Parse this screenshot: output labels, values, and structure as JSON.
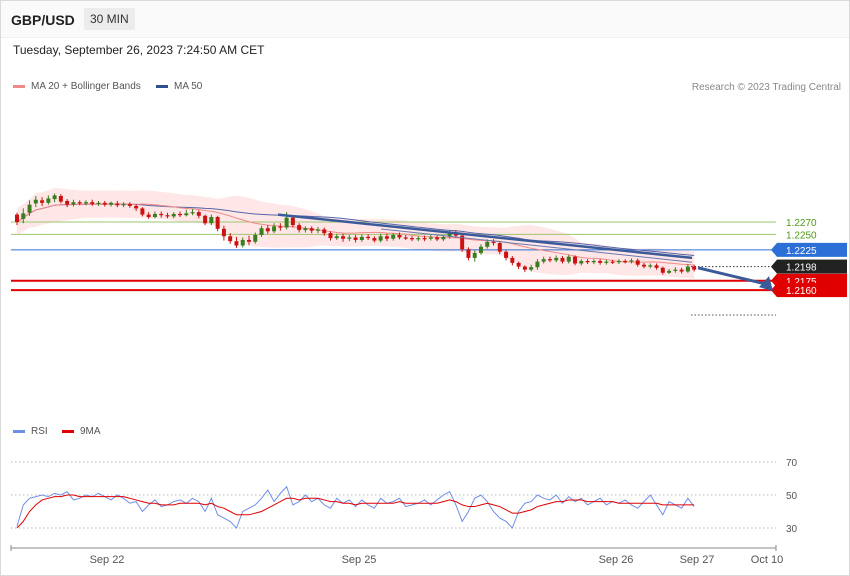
{
  "header": {
    "pair": "GBP/USD",
    "timeframe": "30 MIN"
  },
  "timestamp": "Tuesday, September 26, 2023 7:24:50 AM CET",
  "legend": {
    "ma20_bb": "MA 20 + Bollinger Bands",
    "ma50": "MA 50",
    "rsi": "RSI",
    "ma9": "9MA",
    "credit": "Research © 2023 Trading Central"
  },
  "colors": {
    "bull": "#3a7d1e",
    "bear": "#cc1111",
    "band": "#ffe3e3",
    "ma20": "#f08a8a",
    "ma50": "#5466a8",
    "trend": "#3b5a9a",
    "level_green": "#9ec46f",
    "level_blue": "#2c6fd6",
    "level_red": "#e00000",
    "rsi": "#6f8ee8",
    "rsi_ma": "#e00000"
  },
  "chart_data": [
    {
      "type": "candlestick",
      "title": "GBP/USD 30 MIN",
      "ylim": [
        1.2145,
        1.2325
      ],
      "x_ticks": [
        "Sep 22",
        "Sep 25",
        "Sep 26",
        "Sep 27",
        "Oct 10"
      ],
      "levels": [
        {
          "value": 1.227,
          "label": "1.2270",
          "role": "resistance"
        },
        {
          "value": 1.225,
          "label": "1.2250",
          "role": "resistance"
        },
        {
          "value": 1.2225,
          "label": "1.2225",
          "role": "pivot"
        },
        {
          "value": 1.2198,
          "label": "1.2198",
          "role": "last price"
        },
        {
          "value": 1.2175,
          "label": "1.2175",
          "role": "support"
        },
        {
          "value": 1.216,
          "label": "1.2160",
          "role": "support"
        }
      ],
      "candles": [
        [
          1.2282,
          1.227,
          1.2285,
          1.2265
        ],
        [
          1.2275,
          1.2284,
          1.2292,
          1.2268
        ],
        [
          1.2285,
          1.2298,
          1.2305,
          1.228
        ],
        [
          1.23,
          1.2306,
          1.2312,
          1.2294
        ],
        [
          1.2305,
          1.2301,
          1.231,
          1.2296
        ],
        [
          1.2301,
          1.2308,
          1.2313,
          1.2298
        ],
        [
          1.2307,
          1.2313,
          1.2316,
          1.2302
        ],
        [
          1.2312,
          1.2303,
          1.2315,
          1.23
        ],
        [
          1.2304,
          1.2298,
          1.2307,
          1.2294
        ],
        [
          1.2298,
          1.2302,
          1.2306,
          1.2295
        ],
        [
          1.2302,
          1.23,
          1.2305,
          1.2297
        ],
        [
          1.23,
          1.2302,
          1.2305,
          1.2297
        ],
        [
          1.2302,
          1.2299,
          1.2306,
          1.2296
        ],
        [
          1.2299,
          1.2301,
          1.2304,
          1.2296
        ],
        [
          1.2301,
          1.2298,
          1.2304,
          1.2295
        ],
        [
          1.2298,
          1.2301,
          1.2303,
          1.2295
        ],
        [
          1.23,
          1.2297,
          1.2304,
          1.2294
        ],
        [
          1.2297,
          1.2299,
          1.2302,
          1.2294
        ],
        [
          1.2299,
          1.2296,
          1.2302,
          1.2293
        ],
        [
          1.2296,
          1.2292,
          1.2299,
          1.2288
        ],
        [
          1.2292,
          1.2282,
          1.2294,
          1.2279
        ],
        [
          1.2282,
          1.2278,
          1.2286,
          1.2275
        ],
        [
          1.2278,
          1.2283,
          1.2287,
          1.2276
        ],
        [
          1.2283,
          1.2281,
          1.2287,
          1.2277
        ],
        [
          1.2281,
          1.2279,
          1.2285,
          1.2276
        ],
        [
          1.2279,
          1.2283,
          1.2286,
          1.2276
        ],
        [
          1.2283,
          1.2281,
          1.2287,
          1.2278
        ],
        [
          1.2281,
          1.2284,
          1.229,
          1.2279
        ],
        [
          1.2284,
          1.2286,
          1.2291,
          1.2281
        ],
        [
          1.2286,
          1.228,
          1.2289,
          1.2276
        ],
        [
          1.228,
          1.2268,
          1.2282,
          1.2265
        ],
        [
          1.2268,
          1.2278,
          1.2282,
          1.2265
        ],
        [
          1.2278,
          1.2259,
          1.228,
          1.2255
        ],
        [
          1.2259,
          1.2247,
          1.2264,
          1.224
        ],
        [
          1.2247,
          1.2239,
          1.2252,
          1.2235
        ],
        [
          1.2239,
          1.2232,
          1.2246,
          1.2228
        ],
        [
          1.2232,
          1.2241,
          1.2245,
          1.2229
        ],
        [
          1.2241,
          1.2238,
          1.2248,
          1.2233
        ],
        [
          1.2238,
          1.2249,
          1.2253,
          1.2235
        ],
        [
          1.2249,
          1.226,
          1.2264,
          1.2246
        ],
        [
          1.226,
          1.2255,
          1.2265,
          1.2251
        ],
        [
          1.2255,
          1.2263,
          1.2268,
          1.2252
        ],
        [
          1.2263,
          1.2261,
          1.2268,
          1.2256
        ],
        [
          1.2261,
          1.2277,
          1.2286,
          1.2258
        ],
        [
          1.2277,
          1.2265,
          1.2281,
          1.2261
        ],
        [
          1.2265,
          1.2257,
          1.2268,
          1.2253
        ],
        [
          1.2257,
          1.226,
          1.2263,
          1.2253
        ],
        [
          1.226,
          1.2256,
          1.2263,
          1.2252
        ],
        [
          1.2256,
          1.2258,
          1.2262,
          1.2252
        ],
        [
          1.2258,
          1.2252,
          1.2261,
          1.2248
        ],
        [
          1.2252,
          1.2244,
          1.2255,
          1.224
        ],
        [
          1.2244,
          1.2247,
          1.2251,
          1.2241
        ],
        [
          1.2247,
          1.2243,
          1.2251,
          1.2238
        ],
        [
          1.2243,
          1.2245,
          1.2249,
          1.2239
        ],
        [
          1.2245,
          1.2241,
          1.2249,
          1.2237
        ],
        [
          1.2241,
          1.2246,
          1.225,
          1.2238
        ],
        [
          1.2246,
          1.2244,
          1.225,
          1.2241
        ],
        [
          1.2244,
          1.224,
          1.2247,
          1.2237
        ],
        [
          1.224,
          1.2247,
          1.2251,
          1.2237
        ],
        [
          1.2247,
          1.2243,
          1.2251,
          1.2239
        ],
        [
          1.2243,
          1.2249,
          1.2252,
          1.224
        ],
        [
          1.2249,
          1.2245,
          1.2253,
          1.2242
        ],
        [
          1.2245,
          1.2244,
          1.2249,
          1.2241
        ],
        [
          1.2244,
          1.2242,
          1.2247,
          1.2239
        ],
        [
          1.2242,
          1.2244,
          1.2247,
          1.2239
        ],
        [
          1.2244,
          1.2243,
          1.2248,
          1.2239
        ],
        [
          1.2243,
          1.2245,
          1.2249,
          1.224
        ],
        [
          1.2245,
          1.2242,
          1.2248,
          1.2239
        ],
        [
          1.2242,
          1.2246,
          1.2249,
          1.2239
        ],
        [
          1.2246,
          1.2252,
          1.2256,
          1.2243
        ],
        [
          1.2252,
          1.2248,
          1.2257,
          1.2244
        ],
        [
          1.2248,
          1.2226,
          1.225,
          1.2222
        ],
        [
          1.2226,
          1.2212,
          1.2229,
          1.2208
        ],
        [
          1.2212,
          1.222,
          1.2224,
          1.2206
        ],
        [
          1.222,
          1.223,
          1.2234,
          1.2217
        ],
        [
          1.223,
          1.2238,
          1.2242,
          1.2227
        ],
        [
          1.2238,
          1.2236,
          1.2242,
          1.2232
        ],
        [
          1.2236,
          1.2222,
          1.2238,
          1.2218
        ],
        [
          1.2222,
          1.2212,
          1.2224,
          1.2208
        ],
        [
          1.2212,
          1.2204,
          1.2215,
          1.22
        ],
        [
          1.2204,
          1.2198,
          1.2206,
          1.2194
        ],
        [
          1.2198,
          1.2193,
          1.22,
          1.2189
        ],
        [
          1.2193,
          1.2197,
          1.2201,
          1.219
        ],
        [
          1.2197,
          1.2206,
          1.221,
          1.2193
        ],
        [
          1.2206,
          1.221,
          1.2214,
          1.2203
        ],
        [
          1.221,
          1.2208,
          1.2214,
          1.2205
        ],
        [
          1.2208,
          1.2212,
          1.2216,
          1.2205
        ],
        [
          1.2212,
          1.2206,
          1.2215,
          1.2203
        ],
        [
          1.2206,
          1.2214,
          1.2217,
          1.2203
        ],
        [
          1.2214,
          1.2203,
          1.2216,
          1.22
        ],
        [
          1.2203,
          1.2207,
          1.221,
          1.22
        ],
        [
          1.2207,
          1.2205,
          1.221,
          1.2202
        ],
        [
          1.2205,
          1.2207,
          1.221,
          1.2202
        ],
        [
          1.2207,
          1.2204,
          1.221,
          1.2201
        ],
        [
          1.2204,
          1.2206,
          1.2209,
          1.2201
        ],
        [
          1.2206,
          1.2205,
          1.2209,
          1.2202
        ],
        [
          1.2205,
          1.2207,
          1.221,
          1.2202
        ],
        [
          1.2207,
          1.2206,
          1.221,
          1.2203
        ],
        [
          1.2206,
          1.2208,
          1.2211,
          1.2203
        ],
        [
          1.2208,
          1.2201,
          1.2211,
          1.2198
        ],
        [
          1.2201,
          1.2198,
          1.2204,
          1.2195
        ],
        [
          1.2198,
          1.22,
          1.2203,
          1.2195
        ],
        [
          1.22,
          1.2196,
          1.2203,
          1.2193
        ],
        [
          1.2196,
          1.2188,
          1.2198,
          1.2185
        ],
        [
          1.2188,
          1.2191,
          1.2194,
          1.2186
        ],
        [
          1.2191,
          1.2193,
          1.2197,
          1.2188
        ],
        [
          1.2193,
          1.219,
          1.2196,
          1.2187
        ],
        [
          1.219,
          1.2198,
          1.2202,
          1.2188
        ],
        [
          1.2198,
          1.2193,
          1.2201,
          1.219
        ]
      ],
      "ma20_bollinger": {
        "label": "MA 20 + Bollinger Bands"
      },
      "ma50": {
        "label": "MA 50"
      },
      "trendlines": [
        {
          "from": [
            "Sep 25",
            1.2282
          ],
          "to": [
            "Sep 27",
            1.2212
          ]
        }
      ],
      "forecast_arrow": {
        "from": 1.2196,
        "to": 1.216
      }
    },
    {
      "type": "line",
      "title": "RSI",
      "ylim": [
        20,
        80
      ],
      "y_ticks": [
        30,
        50,
        70
      ],
      "series": [
        {
          "name": "RSI",
          "values": [
            31,
            44,
            48,
            49,
            50,
            49,
            51,
            50,
            52,
            47,
            48,
            50,
            49,
            51,
            49,
            47,
            50,
            48,
            45,
            46,
            40,
            44,
            47,
            43,
            44,
            46,
            47,
            45,
            48,
            46,
            40,
            48,
            38,
            36,
            34,
            30,
            40,
            42,
            44,
            48,
            53,
            46,
            51,
            55,
            44,
            46,
            50,
            46,
            48,
            44,
            42,
            48,
            45,
            47,
            43,
            47,
            44,
            42,
            48,
            45,
            46,
            48,
            43,
            44,
            45,
            47,
            44,
            47,
            50,
            52,
            44,
            34,
            40,
            48,
            50,
            46,
            40,
            36,
            34,
            30,
            40,
            45,
            46,
            50,
            48,
            47,
            50,
            45,
            49,
            46,
            48,
            44,
            46,
            48,
            44,
            46,
            45,
            47,
            44,
            42,
            46,
            50,
            44,
            38,
            46,
            44,
            42,
            48,
            43
          ]
        },
        {
          "name": "9MA",
          "values": [
            30,
            34,
            40,
            44,
            47,
            48,
            49,
            49,
            50,
            50,
            49,
            49,
            49,
            49,
            49,
            49,
            49,
            49,
            48,
            47,
            46,
            45,
            45,
            44,
            44,
            44,
            45,
            45,
            45,
            45,
            44,
            45,
            43,
            42,
            40,
            38,
            38,
            38,
            39,
            40,
            42,
            44,
            46,
            48,
            48,
            47,
            48,
            48,
            48,
            47,
            46,
            46,
            45,
            45,
            44,
            45,
            45,
            45,
            45,
            45,
            45,
            46,
            45,
            45,
            45,
            45,
            45,
            45,
            46,
            47,
            46,
            44,
            43,
            43,
            44,
            45,
            44,
            43,
            41,
            39,
            39,
            40,
            41,
            43,
            44,
            45,
            46,
            46,
            47,
            47,
            47,
            46,
            46,
            46,
            46,
            46,
            45,
            45,
            45,
            45,
            45,
            45,
            45,
            44,
            44,
            44,
            44,
            44,
            44
          ]
        }
      ]
    }
  ]
}
